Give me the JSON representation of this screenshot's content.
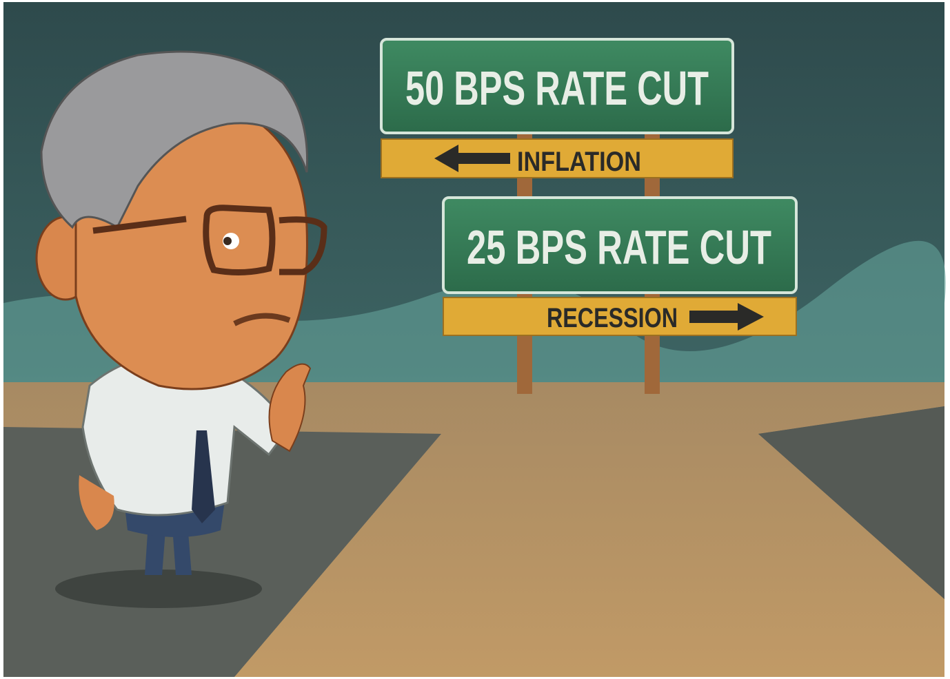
{
  "signs": [
    {
      "label": "50 BPS RATE CUT",
      "direction_label": "INFLATION"
    },
    {
      "label": "25 BPS RATE CUT",
      "direction_label": "RECESSION"
    }
  ]
}
